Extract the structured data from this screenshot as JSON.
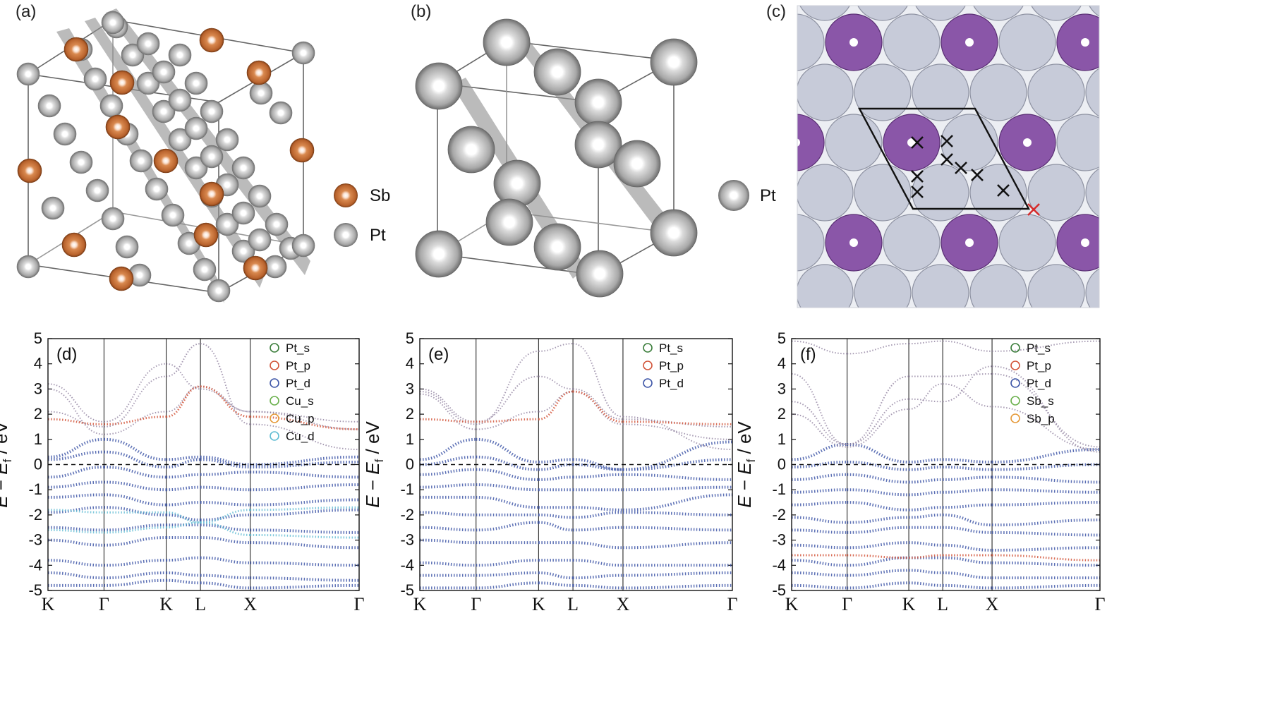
{
  "panels_top": {
    "a": {
      "label": "(a)",
      "legend": [
        {
          "name": "Sb",
          "color": "#c8713f"
        },
        {
          "name": "Pt",
          "color": "#b4b4b4"
        }
      ]
    },
    "b": {
      "label": "(b)",
      "legend": [
        {
          "name": "Pt",
          "color": "#b4b4b4"
        }
      ]
    },
    "c": {
      "label": "(c)",
      "surface_color": "#c3c6d6",
      "dopant_color": "#8a56a8",
      "marker_color": "#111111",
      "marker_highlight": "#d62b2b"
    }
  },
  "chart_data": [
    {
      "type": "line",
      "panel": "(d)",
      "ylabel": "E − E_f / eV",
      "ylim": [
        -5,
        5
      ],
      "yticks": [
        5,
        4,
        3,
        2,
        1,
        0,
        -1,
        -2,
        -3,
        -4,
        -5
      ],
      "kpath": [
        "K",
        "Γ",
        "K",
        "L",
        "X",
        "Γ"
      ],
      "legend": [
        {
          "name": "Pt_s",
          "color": "#3a7d3a"
        },
        {
          "name": "Pt_p",
          "color": "#d2553a"
        },
        {
          "name": "Pt_d",
          "color": "#3f57a8"
        },
        {
          "name": "Cu_s",
          "color": "#6ab04c"
        },
        {
          "name": "Cu_p",
          "color": "#e59a3a"
        },
        {
          "name": "Cu_d",
          "color": "#5fbcd3"
        }
      ],
      "fermi_level": 0
    },
    {
      "type": "line",
      "panel": "(e)",
      "ylabel": "E − E_f / eV",
      "ylim": [
        -5,
        5
      ],
      "yticks": [
        5,
        4,
        3,
        2,
        1,
        0,
        -1,
        -2,
        -3,
        -4,
        -5
      ],
      "kpath": [
        "K",
        "Γ",
        "K",
        "L",
        "X",
        "Γ"
      ],
      "legend": [
        {
          "name": "Pt_s",
          "color": "#3a7d3a"
        },
        {
          "name": "Pt_p",
          "color": "#d2553a"
        },
        {
          "name": "Pt_d",
          "color": "#3f57a8"
        }
      ],
      "fermi_level": 0
    },
    {
      "type": "line",
      "panel": "(f)",
      "ylabel": "E − E_f / eV",
      "ylim": [
        -5,
        5
      ],
      "yticks": [
        5,
        4,
        3,
        2,
        1,
        0,
        -1,
        -2,
        -3,
        -4,
        -5
      ],
      "kpath": [
        "K",
        "Γ",
        "K",
        "L",
        "X",
        "Γ"
      ],
      "legend": [
        {
          "name": "Pt_s",
          "color": "#3a7d3a"
        },
        {
          "name": "Pt_p",
          "color": "#d2553a"
        },
        {
          "name": "Pt_d",
          "color": "#3f57a8"
        },
        {
          "name": "Sb_s",
          "color": "#6ab04c"
        },
        {
          "name": "Sb_p",
          "color": "#e59a3a"
        }
      ],
      "fermi_level": 0
    }
  ],
  "ylabel_parts": {
    "E": "E",
    "minus": " − ",
    "Ef": "E",
    "sub": "f",
    "unit": " / eV"
  }
}
